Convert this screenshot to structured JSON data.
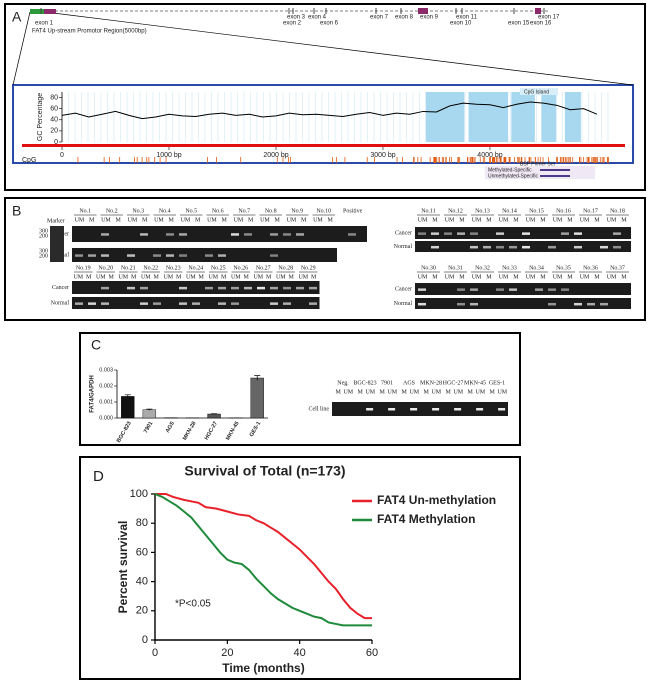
{
  "panel_a": {
    "label": "A",
    "exons": [
      "exon 1",
      "exon 3",
      "exon 4",
      "exon 2",
      "exon 6",
      "exon 7",
      "exon 8",
      "exon 9",
      "exon 11",
      "exon 10",
      "exon 15",
      "exon 17",
      "exon 16"
    ],
    "promoter_label": "FAT4 Up-stream Promotor Region(5000bp)",
    "chart": {
      "type": "line",
      "y_label": "GC Percentage",
      "x": [
        0,
        125,
        250,
        375,
        500,
        625,
        750,
        875,
        1000,
        1125,
        1250,
        1375,
        1500,
        1625,
        1750,
        1875,
        2000,
        2125,
        2250,
        2375,
        2500,
        2625,
        2750,
        2875,
        3000,
        3125,
        3250,
        3375,
        3500,
        3625,
        3750,
        3875,
        4000,
        4125,
        4250,
        4375,
        4500,
        4625,
        4750,
        4875,
        5000
      ],
      "values": [
        48,
        52,
        45,
        50,
        55,
        48,
        42,
        45,
        50,
        47,
        46,
        50,
        52,
        48,
        50,
        45,
        47,
        52,
        49,
        50,
        48,
        46,
        50,
        53,
        48,
        52,
        50,
        55,
        54,
        65,
        70,
        68,
        67,
        62,
        68,
        72,
        70,
        66,
        58,
        60,
        50
      ],
      "color": "#000000",
      "xlim": [
        0,
        5150
      ],
      "ylim": [
        0,
        90
      ],
      "yticks": [
        0,
        20,
        40,
        60,
        80
      ],
      "xticks": [
        0,
        {
          "value": 1000,
          "label": "1000 bp"
        },
        {
          "value": 2000,
          "label": "2000 bp"
        },
        {
          "value": 3000,
          "label": "3000 bp"
        },
        {
          "value": 4000,
          "label": "4000 bp"
        }
      ],
      "cpg_label": "CpG",
      "islands": [
        [
          3400,
          3760
        ],
        [
          3800,
          4170
        ],
        [
          4200,
          4420
        ],
        [
          4480,
          4620
        ],
        [
          4700,
          4850
        ]
      ],
      "island_color": "#a8d8ef",
      "island_label": "CpG Island",
      "primer_label": "BSP Primer Set",
      "methylated_label": "Methylated-Specific",
      "unmethylated_label": "Unmethylated-Specific"
    }
  },
  "panel_b": {
    "label": "B",
    "marker": "Marker",
    "positive": "Positive",
    "rows": [
      "Cancer",
      "Normal"
    ],
    "lanes": [
      "UM",
      "M"
    ],
    "sizes": [
      "300",
      "200"
    ],
    "groups": [
      [
        "No.1",
        "No.2",
        "No.3",
        "No.4",
        "No.5",
        "No.6",
        "No.7",
        "No.8",
        "No.9",
        "No.10"
      ],
      [
        "No.19",
        "No.20",
        "No.21",
        "No.22",
        "No.23",
        "No.24",
        "No.25",
        "No.26",
        "No.27",
        "No.28",
        "No.29"
      ],
      [
        "No.11",
        "No.12",
        "No.13",
        "No.14",
        "No.15",
        "No.16",
        "No.17",
        "No.18"
      ],
      [
        "No.30",
        "No.31",
        "No.32",
        "No.33",
        "No.34",
        "No.35",
        "No.36",
        "No.37"
      ]
    ]
  },
  "panel_c": {
    "label": "C",
    "chart": {
      "type": "bar",
      "y_label": "FAT4/GAPDH",
      "categories": [
        "BGC-823",
        "7901",
        "AGS",
        "MKN-28",
        "HGC-27",
        "MKN-45",
        "GES-1"
      ],
      "values": [
        0.00135,
        0.00052,
        2e-05,
        1e-05,
        0.00025,
        1e-05,
        0.0025
      ],
      "errors": [
        0.0001,
        4e-05,
        0,
        0,
        2e-05,
        0,
        0.00015
      ],
      "colors": [
        "#111111",
        "#aaaaaa",
        "#888888",
        "#888888",
        "#555555",
        "#777777",
        "#666666"
      ],
      "ylim": [
        0,
        0.003
      ],
      "yticks": [
        {
          "value": 0,
          "label": "0.000"
        },
        {
          "value": 0.001,
          "label": "0.001"
        },
        {
          "value": 0.002,
          "label": "0.002"
        },
        {
          "value": 0.003,
          "label": "0.003"
        }
      ]
    },
    "gel": {
      "samples": [
        "Neg.",
        "BGC-823",
        "7901",
        "AGS",
        "MKN-28",
        "HGC-27",
        "MKN-45",
        "GES-1"
      ],
      "lanes": [
        "M",
        "UM"
      ],
      "row": "Cell line"
    }
  },
  "panel_d": {
    "label": "D",
    "chart": {
      "type": "line",
      "title": "Survival of Total (n=173)",
      "x_label": "Time (months)",
      "y_label": "Percent survival",
      "annotation": "*P<0.05",
      "xlim": [
        0,
        60
      ],
      "ylim": [
        0,
        100
      ],
      "xticks": [
        0,
        20,
        40,
        60
      ],
      "yticks": [
        0,
        20,
        40,
        60,
        80,
        100
      ],
      "series": [
        {
          "name": "FAT4 Un-methylation",
          "color": "#e8202a",
          "x": [
            0,
            3,
            5,
            8,
            10,
            12,
            14,
            17,
            20,
            23,
            26,
            28,
            30,
            32,
            34,
            36,
            38,
            40,
            42,
            44,
            46,
            48,
            50,
            52,
            54,
            56,
            58,
            60
          ],
          "values": [
            100,
            100,
            98,
            96,
            95,
            94,
            91,
            90,
            88,
            86,
            85,
            82,
            80,
            77,
            74,
            70,
            66,
            62,
            57,
            52,
            46,
            40,
            35,
            28,
            22,
            18,
            15,
            15
          ]
        },
        {
          "name": "FAT4 Methylation",
          "color": "#1e8a3a",
          "x": [
            0,
            2,
            4,
            6,
            8,
            10,
            12,
            14,
            16,
            18,
            20,
            22,
            24,
            26,
            28,
            30,
            32,
            34,
            36,
            38,
            40,
            42,
            44,
            46,
            48,
            50,
            52,
            55,
            58,
            60
          ],
          "values": [
            100,
            98,
            95,
            92,
            88,
            84,
            78,
            72,
            66,
            60,
            55,
            53,
            52,
            48,
            42,
            37,
            32,
            28,
            25,
            22,
            20,
            18,
            16,
            15,
            12,
            11,
            10,
            10,
            10,
            10
          ]
        }
      ]
    }
  }
}
